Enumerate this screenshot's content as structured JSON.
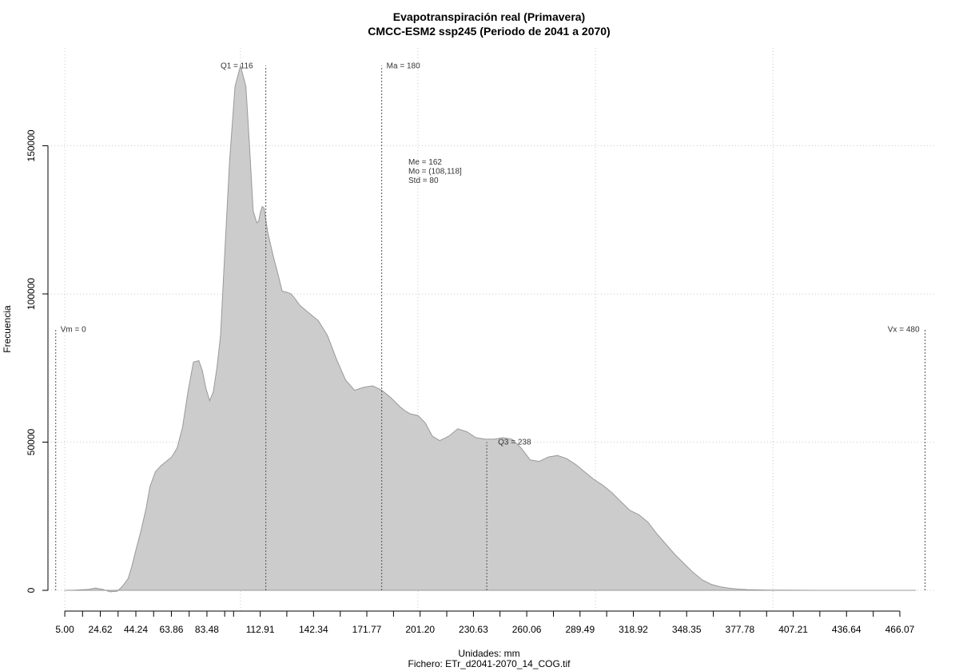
{
  "chart_data": {
    "type": "area",
    "title": "Evapotranspiración real (Primavera)",
    "subtitle": "CMCC-ESM2 ssp245 (Periodo de 2041 a 2070)",
    "xlabel": "Unidades: mm",
    "ylabel": "Frecuencia",
    "file_label": "Fichero: ETr_d2041-2070_14_COG.tif",
    "xlim": [
      -4.3,
      485.5
    ],
    "ylim": [
      -7000,
      183000
    ],
    "grid": true,
    "fill_color": "#cccccc",
    "line_color": "#999999",
    "x_ticks": [
      5.0,
      24.62,
      44.24,
      63.86,
      83.48,
      112.91,
      142.34,
      171.77,
      201.2,
      230.63,
      260.06,
      289.49,
      318.92,
      348.35,
      377.78,
      407.21,
      436.64,
      466.07
    ],
    "x_tick_labels": [
      "5.00",
      "24.62",
      "44.24",
      "63.86",
      "83.48",
      "112.91",
      "142.34",
      "171.77",
      "201.20",
      "230.63",
      "260.06",
      "289.49",
      "318.92",
      "348.35",
      "377.78",
      "407.21",
      "436.64",
      "466.07"
    ],
    "x_minor_ticks": [
      14.81,
      34.43,
      54.05,
      73.67,
      93.29,
      98.2,
      127.6,
      157.1,
      186.5,
      215.9,
      245.3,
      274.8,
      304.2,
      333.6,
      363.1,
      392.5,
      421.9,
      451.4
    ],
    "x_grid": [
      5.0,
      102.0,
      200.0,
      298.0,
      396.0
    ],
    "y_ticks": [
      0,
      50000,
      100000,
      150000
    ],
    "y_tick_labels": [
      "0",
      "50000",
      "100000",
      "150000"
    ],
    "x": [
      5,
      10,
      18,
      22,
      26,
      30,
      34,
      37,
      40,
      42,
      44,
      47,
      50,
      52,
      55,
      58,
      61,
      64,
      67,
      70,
      73,
      76,
      79,
      81,
      83,
      85,
      87,
      89,
      91,
      93,
      96,
      99,
      102,
      105,
      107,
      109,
      111,
      112,
      113,
      114,
      115,
      117,
      120,
      123,
      125,
      128,
      130,
      132,
      135,
      140,
      145,
      150,
      155,
      160,
      165,
      170,
      175,
      180,
      185,
      190,
      193,
      196,
      200,
      204,
      208,
      212,
      217,
      222,
      227,
      232,
      237,
      242,
      247,
      252,
      257,
      262,
      267,
      272,
      277,
      282,
      287,
      292,
      297,
      302,
      307,
      312,
      317,
      322,
      327,
      332,
      337,
      342,
      347,
      352,
      357,
      362,
      367,
      372,
      377,
      382,
      387,
      392,
      397,
      402,
      410,
      418,
      430,
      445,
      460,
      475
    ],
    "y": [
      0,
      50,
      300,
      800,
      300,
      -500,
      -300,
      1500,
      4000,
      8000,
      13000,
      20000,
      28000,
      35000,
      40000,
      42000,
      43500,
      45000,
      48000,
      55000,
      67000,
      77000,
      77500,
      74000,
      68000,
      64000,
      67000,
      75000,
      86000,
      110000,
      145000,
      170000,
      177000,
      170000,
      150000,
      128000,
      124000,
      124500,
      127500,
      129500,
      129000,
      121000,
      113000,
      106000,
      101000,
      100500,
      100000,
      98500,
      96000,
      93500,
      91000,
      86000,
      78000,
      71000,
      67500,
      68500,
      69000,
      67500,
      65000,
      62000,
      60500,
      59500,
      59000,
      56500,
      52000,
      50500,
      52000,
      54500,
      53500,
      51500,
      51000,
      51000,
      51500,
      51000,
      48000,
      44000,
      43500,
      45000,
      45500,
      44500,
      42500,
      40000,
      37500,
      35500,
      33000,
      30000,
      27000,
      25500,
      23000,
      19000,
      15500,
      12000,
      9000,
      6000,
      3500,
      2000,
      1200,
      700,
      400,
      250,
      180,
      120,
      80,
      50,
      30,
      20,
      10,
      5,
      2,
      0
    ],
    "vlines": [
      {
        "label": "Vm = 0",
        "x": 0,
        "top": 88000
      },
      {
        "label": "Q1 = 116",
        "x": 116,
        "top": 177000
      },
      {
        "label": "Ma = 180",
        "x": 180,
        "top": 177000
      },
      {
        "label": "Q3 = 238",
        "x": 238,
        "top": 50000
      },
      {
        "label": "Vx = 480",
        "x": 480,
        "top": 88000
      }
    ],
    "stats_box": [
      "Me = 162",
      "Mo = (108,118]",
      "Std = 80"
    ]
  }
}
